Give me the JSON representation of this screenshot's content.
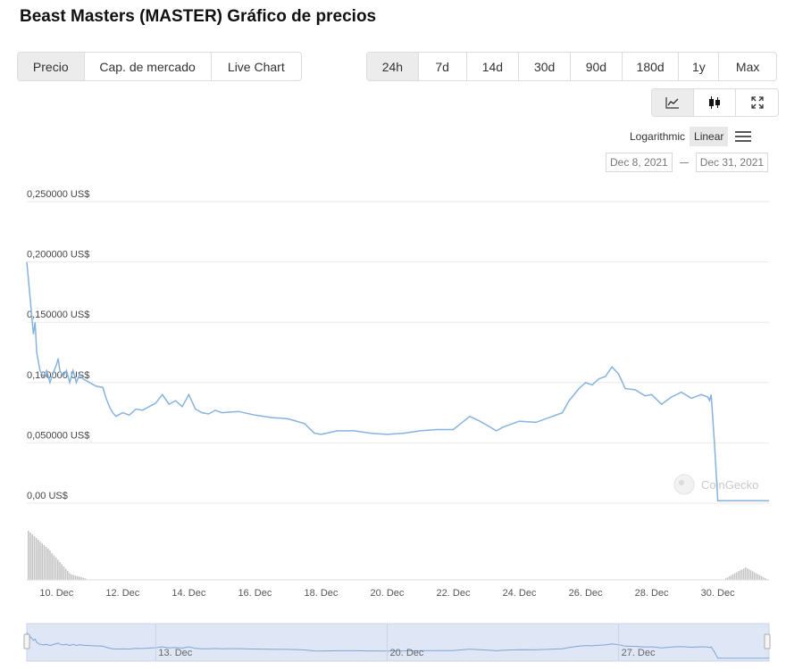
{
  "page": {
    "title": "Beast Masters (MASTER) Gráfico de precios"
  },
  "view_tabs": [
    {
      "label": "Precio",
      "active": true
    },
    {
      "label": "Cap. de mercado",
      "active": false
    },
    {
      "label": "Live Chart",
      "active": false
    }
  ],
  "range_tabs": [
    {
      "label": "24h",
      "active": true
    },
    {
      "label": "7d",
      "active": false
    },
    {
      "label": "14d",
      "active": false
    },
    {
      "label": "30d",
      "active": false
    },
    {
      "label": "90d",
      "active": false
    },
    {
      "label": "180d",
      "active": false
    },
    {
      "label": "1y",
      "active": false
    },
    {
      "label": "Max",
      "active": false
    }
  ],
  "tools": [
    {
      "icon": "line-chart-icon",
      "active": true
    },
    {
      "icon": "candlestick-icon",
      "active": false
    },
    {
      "icon": "fullscreen-icon",
      "active": false
    }
  ],
  "scale": {
    "logarithmic": "Logarithmic",
    "linear": "Linear",
    "active": "linear"
  },
  "date_range": {
    "from": "Dec 8, 2021",
    "to": "Dec 31, 2021"
  },
  "watermark": "CoinGecko",
  "colors": {
    "line": "#86b3de",
    "navigator_fill": "#dfe6f5",
    "volume": "#c4c4c4",
    "grid": "#eaeaea"
  },
  "chart_data": {
    "type": "line",
    "title": "",
    "xlabel": "",
    "ylabel": "",
    "x_unit": "day of December 2021",
    "xlim": [
      9.1,
      31.55
    ],
    "ylim": [
      0,
      0.25
    ],
    "y_ticks": [
      "0,00 US$",
      "0,050000 US$",
      "0,100000 US$",
      "0,150000 US$",
      "0,200000 US$",
      "0,250000 US$"
    ],
    "y_tick_values": [
      0,
      0.05,
      0.1,
      0.15,
      0.2,
      0.25
    ],
    "x_ticks": [
      "10. Dec",
      "12. Dec",
      "14. Dec",
      "16. Dec",
      "18. Dec",
      "20. Dec",
      "22. Dec",
      "24. Dec",
      "26. Dec",
      "28. Dec",
      "30. Dec"
    ],
    "x_tick_values": [
      10,
      12,
      14,
      16,
      18,
      20,
      22,
      24,
      26,
      28,
      30
    ],
    "series": [
      {
        "x": [
          9.1,
          9.15,
          9.2,
          9.25,
          9.3,
          9.35,
          9.4,
          9.5,
          9.6,
          9.7,
          9.8,
          9.9,
          10.0,
          10.05,
          10.1,
          10.2,
          10.3,
          10.4,
          10.5,
          10.6,
          10.7,
          10.8,
          11.0,
          11.2,
          11.4,
          11.5,
          11.6,
          11.7,
          11.8,
          12.0,
          12.2,
          12.4,
          12.6,
          12.8,
          13.0,
          13.2,
          13.4,
          13.6,
          13.8,
          14.0,
          14.2,
          14.4,
          14.6,
          14.8,
          15.0,
          15.5,
          16.0,
          16.5,
          17.0,
          17.5,
          17.8,
          18.0,
          18.5,
          19.0,
          19.5,
          20.0,
          20.5,
          21.0,
          21.5,
          22.0,
          22.5,
          22.8,
          23.0,
          23.3,
          23.5,
          24.0,
          24.5,
          25.0,
          25.3,
          25.5,
          25.8,
          26.0,
          26.2,
          26.4,
          26.6,
          26.8,
          27.0,
          27.2,
          27.5,
          27.8,
          28.0,
          28.3,
          28.6,
          28.9,
          29.2,
          29.5,
          29.7,
          29.75,
          29.8,
          29.9,
          30.0,
          30.5,
          31.0,
          31.55
        ],
        "y": [
          0.2,
          0.185,
          0.17,
          0.155,
          0.14,
          0.15,
          0.125,
          0.11,
          0.105,
          0.11,
          0.1,
          0.108,
          0.115,
          0.12,
          0.11,
          0.105,
          0.11,
          0.1,
          0.11,
          0.1,
          0.107,
          0.103,
          0.1,
          0.097,
          0.096,
          0.087,
          0.08,
          0.075,
          0.072,
          0.075,
          0.073,
          0.078,
          0.077,
          0.08,
          0.083,
          0.09,
          0.082,
          0.085,
          0.08,
          0.09,
          0.078,
          0.075,
          0.074,
          0.077,
          0.075,
          0.076,
          0.073,
          0.071,
          0.07,
          0.066,
          0.058,
          0.057,
          0.06,
          0.06,
          0.058,
          0.057,
          0.058,
          0.06,
          0.061,
          0.061,
          0.072,
          0.068,
          0.065,
          0.06,
          0.063,
          0.068,
          0.067,
          0.072,
          0.075,
          0.085,
          0.095,
          0.1,
          0.098,
          0.103,
          0.105,
          0.113,
          0.107,
          0.095,
          0.094,
          0.089,
          0.09,
          0.082,
          0.088,
          0.092,
          0.087,
          0.09,
          0.088,
          0.085,
          0.09,
          0.05,
          0.002,
          0.002,
          0.002,
          0.002
        ]
      }
    ]
  },
  "navigator": {
    "labels": [
      "13. Dec",
      "20. Dec",
      "27. Dec"
    ],
    "label_values": [
      13,
      20,
      27
    ]
  }
}
